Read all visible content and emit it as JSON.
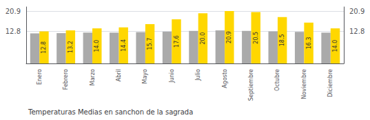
{
  "chart_data": {
    "type": "bar",
    "title": "Temperaturas Medias en sanchon de la sagrada",
    "categories": [
      "Enero",
      "Febrero",
      "Marzo",
      "Abril",
      "Mayo",
      "Junio",
      "Julio",
      "Agosto",
      "Septiembre",
      "Octubre",
      "Noviembre",
      "Diciembre"
    ],
    "series": [
      {
        "color": "#AAAAAA",
        "values": [
          12.0,
          12.1,
          12.3,
          12.3,
          12.5,
          12.7,
          13.0,
          13.2,
          13.0,
          12.8,
          12.6,
          12.3
        ]
      },
      {
        "color": "#FFD700",
        "values": [
          12.8,
          13.2,
          14.0,
          14.4,
          15.7,
          17.6,
          20.0,
          20.9,
          20.5,
          18.5,
          16.3,
          14.0
        ],
        "data_labels": true,
        "value_labels": [
          "12.8",
          "13.2",
          "14.0",
          "14.4",
          "15.7",
          "17.6",
          "20.0",
          "20.9",
          "20.5",
          "18.5",
          "16.3",
          "14.0"
        ]
      }
    ],
    "ylim": [
      0,
      22.572
    ],
    "yticks": [
      12.8,
      20.9
    ],
    "grid": true
  }
}
